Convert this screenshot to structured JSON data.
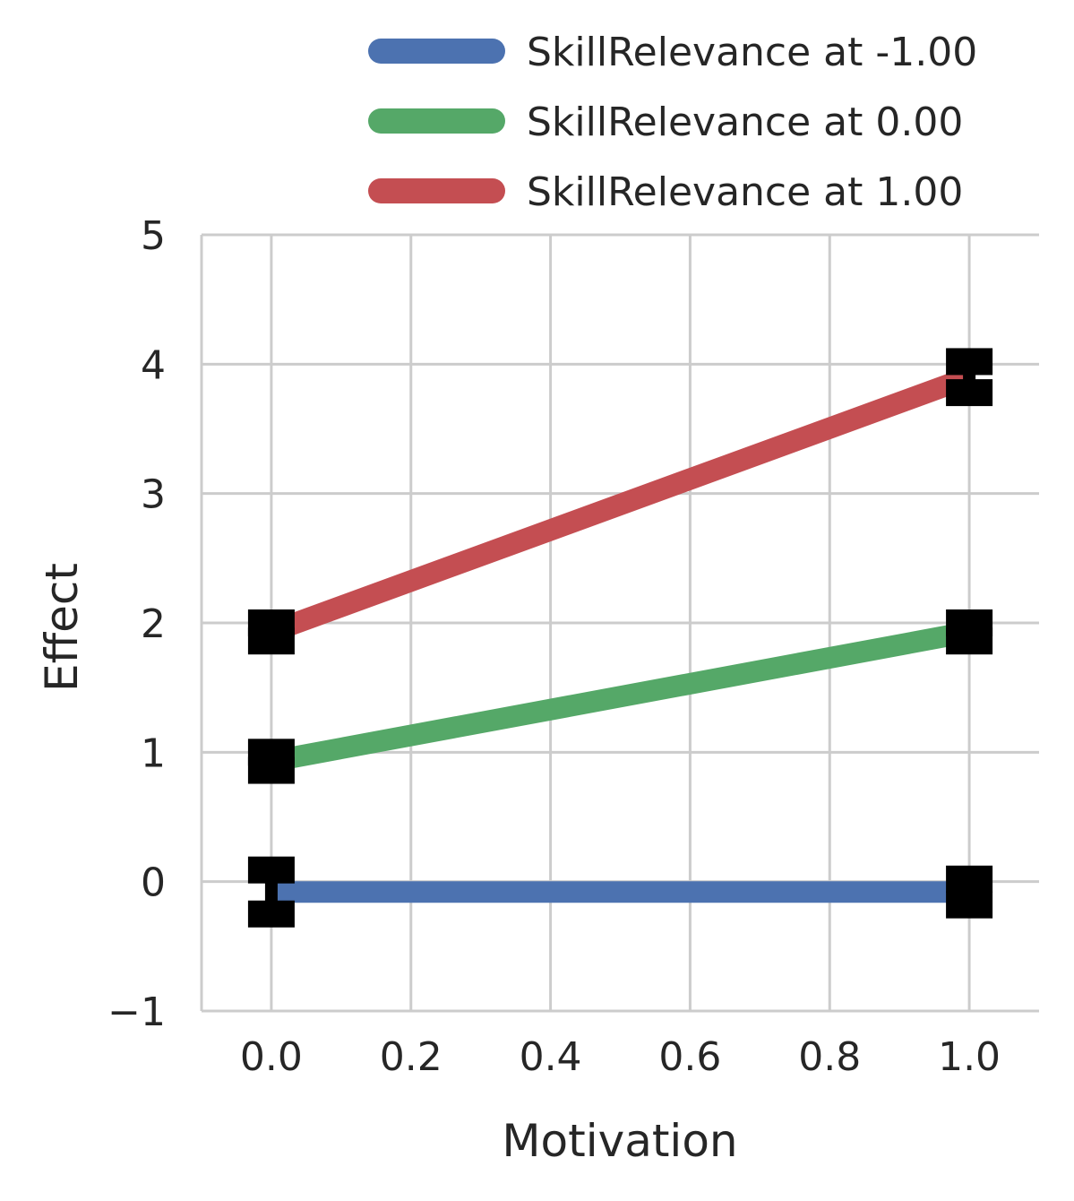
{
  "chart_data": {
    "type": "line",
    "xlabel": "Motivation",
    "ylabel": "Effect",
    "xlim": [
      -0.1,
      1.1
    ],
    "ylim": [
      -1,
      5
    ],
    "xticks": [
      0.0,
      0.2,
      0.4,
      0.6,
      0.8,
      1.0
    ],
    "xtick_labels": [
      "0.0",
      "0.2",
      "0.4",
      "0.6",
      "0.8",
      "1.0"
    ],
    "yticks": [
      -1,
      0,
      1,
      2,
      3,
      4,
      5
    ],
    "ytick_labels": [
      "−1",
      "0",
      "1",
      "2",
      "3",
      "4",
      "5"
    ],
    "grid": true,
    "legend_position": "top-right",
    "series": [
      {
        "name": "SkillRelevance at -1.00",
        "color": "#4c72b0",
        "x": [
          0.0,
          1.0
        ],
        "y": [
          -0.08,
          -0.08
        ],
        "err_low": [
          -0.25,
          -0.18
        ],
        "err_high": [
          0.09,
          0.02
        ]
      },
      {
        "name": "SkillRelevance at 0.00",
        "color": "#55a868",
        "x": [
          0.0,
          1.0
        ],
        "y": [
          0.93,
          1.93
        ],
        "err_low": [
          0.86,
          1.86
        ],
        "err_high": [
          1.0,
          2.0
        ]
      },
      {
        "name": "SkillRelevance at 1.00",
        "color": "#c44e52",
        "x": [
          0.0,
          1.0
        ],
        "y": [
          1.93,
          3.9
        ],
        "err_low": [
          1.86,
          3.78
        ],
        "err_high": [
          2.0,
          4.02
        ]
      }
    ],
    "errorbar_color": "#000000"
  }
}
